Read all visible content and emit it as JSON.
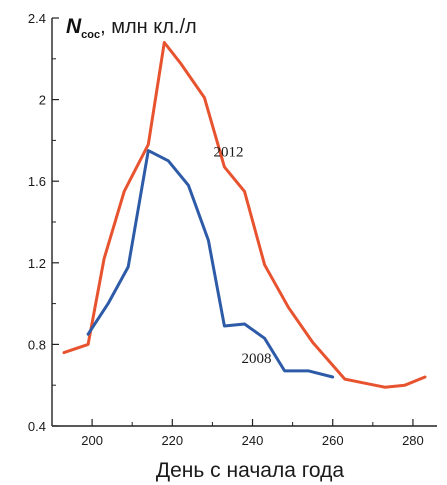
{
  "chart_data": {
    "type": "line",
    "ylabel": {
      "symbol": "N",
      "subscript": "coc",
      "unit": ", млн кл./л"
    },
    "xlabel": "День с начала года",
    "xlim": [
      190,
      286
    ],
    "ylim": [
      0.4,
      2.4
    ],
    "xticks": [
      200,
      220,
      240,
      260,
      280
    ],
    "yticks": [
      0.4,
      0.8,
      1.2,
      1.6,
      2,
      2.4
    ],
    "yticks_minor": [
      0.6,
      1.0,
      1.4,
      1.8,
      2.2
    ],
    "series": [
      {
        "name": "2012",
        "color": "#e8532f",
        "label_pos": [
          234,
          1.72
        ],
        "x": [
          193,
          199,
          203,
          208,
          214,
          218,
          222,
          228,
          233,
          238,
          243,
          249,
          255,
          263,
          268,
          273,
          278,
          283
        ],
        "y": [
          0.76,
          0.8,
          1.22,
          1.55,
          1.78,
          2.28,
          2.18,
          2.01,
          1.67,
          1.55,
          1.19,
          0.98,
          0.81,
          0.63,
          0.61,
          0.59,
          0.6,
          0.64
        ]
      },
      {
        "name": "2008",
        "color": "#2d5ba8",
        "label_pos": [
          241,
          0.71
        ],
        "x": [
          199,
          204,
          209,
          214,
          219,
          224,
          229,
          233,
          238,
          243,
          248,
          254,
          260
        ],
        "y": [
          0.85,
          1.0,
          1.18,
          1.75,
          1.7,
          1.58,
          1.31,
          0.89,
          0.9,
          0.83,
          0.67,
          0.67,
          0.64
        ]
      }
    ]
  }
}
